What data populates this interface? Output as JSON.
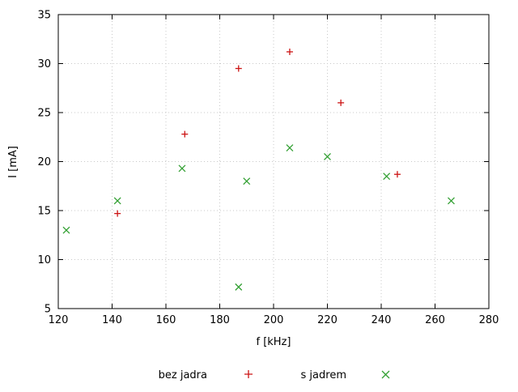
{
  "chart_data": {
    "type": "scatter",
    "title": "",
    "xlabel": "f [kHz]",
    "ylabel": "I [mA]",
    "xlim": [
      120,
      280
    ],
    "ylim": [
      5,
      35
    ],
    "xticks": [
      120,
      140,
      160,
      180,
      200,
      220,
      240,
      260,
      280
    ],
    "yticks": [
      5,
      10,
      15,
      20,
      25,
      30,
      35
    ],
    "grid": true,
    "legend_position": "bottom",
    "series": [
      {
        "name": "bez jadra",
        "marker": "plus",
        "color": "#cc1414",
        "points": [
          [
            142,
            14.7
          ],
          [
            167,
            22.8
          ],
          [
            187,
            29.5
          ],
          [
            206,
            31.2
          ],
          [
            225,
            26.0
          ],
          [
            246,
            18.7
          ]
        ]
      },
      {
        "name": "s jadrem",
        "marker": "cross",
        "color": "#33a033",
        "points": [
          [
            123,
            13.0
          ],
          [
            142,
            16.0
          ],
          [
            166,
            19.3
          ],
          [
            187,
            7.2
          ],
          [
            190,
            18.0
          ],
          [
            206,
            21.4
          ],
          [
            220,
            20.5
          ],
          [
            242,
            18.5
          ],
          [
            266,
            16.0
          ]
        ]
      }
    ]
  }
}
